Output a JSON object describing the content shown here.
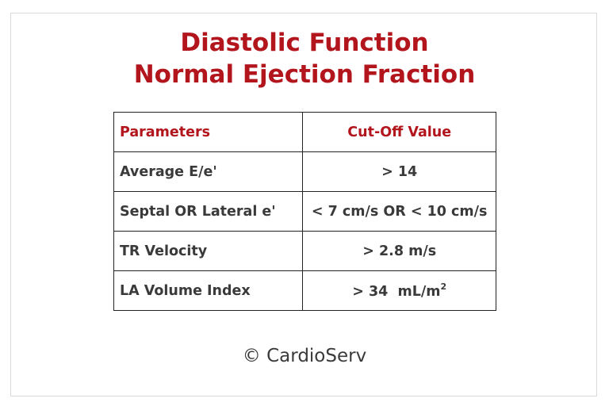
{
  "title": {
    "line1": "Diastolic Function",
    "line2": "Normal Ejection Fraction"
  },
  "table": {
    "headers": [
      "Parameters",
      "Cut-Off Value"
    ],
    "rows": [
      {
        "parameter": "Average E/e'",
        "value": "> 14"
      },
      {
        "parameter": "Septal OR Lateral e'",
        "value": "< 7 cm/s OR < 10 cm/s"
      },
      {
        "parameter": "TR Velocity",
        "value": "> 2.8 m/s"
      },
      {
        "parameter": "LA Volume Index",
        "value": "> 34  mL/m",
        "superscript": "2"
      }
    ]
  },
  "footer": "© CardioServ",
  "colors": {
    "accent": "#b3151d",
    "text": "#3a3a3a",
    "border": "#222222",
    "frame": "#d9d9d9"
  }
}
